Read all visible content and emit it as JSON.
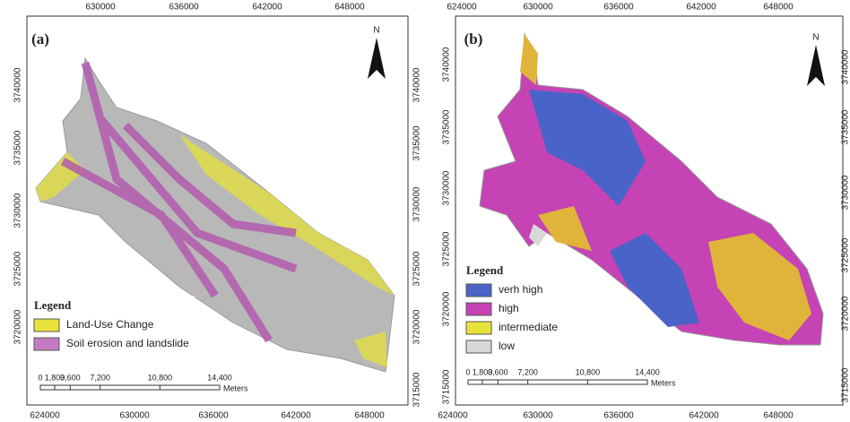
{
  "panels": [
    {
      "label": "(a)",
      "north": "N",
      "top_ticks": [
        630000,
        636000,
        642000,
        648000
      ],
      "bottom_ticks": [
        624000,
        630000,
        636000,
        642000,
        648000
      ],
      "left_ticks": [
        3740000,
        3735000,
        3730000,
        3725000,
        3720000
      ],
      "right_ticks": [
        3740000,
        3735000,
        3730000,
        3725000,
        3720000,
        3715000
      ],
      "legend": {
        "title": "Legend",
        "items": [
          {
            "label": "Land-Use Change",
            "color": "#e8e23a"
          },
          {
            "label": "Soil erosion and landslide",
            "color": "#c77ac4"
          }
        ]
      },
      "scale": {
        "labels": [
          "0",
          "1,800",
          "3,600",
          "7,200",
          "10,800",
          "14,400"
        ],
        "unit": "Meters"
      }
    },
    {
      "label": "(b)",
      "north": "N",
      "top_ticks": [
        624000,
        630000,
        636000,
        642000,
        648000
      ],
      "bottom_ticks": [
        624000,
        630000,
        636000,
        642000,
        648000
      ],
      "left_ticks": [
        3740000,
        3735000,
        3730000,
        3725000,
        3720000,
        3715000
      ],
      "right_ticks": [
        3740000,
        3735000,
        3730000,
        3725000,
        3720000,
        3715000
      ],
      "legend": {
        "title": "Legend",
        "items": [
          {
            "label": "verh high",
            "color": "#4a63c8"
          },
          {
            "label": "high",
            "color": "#c543b4"
          },
          {
            "label": "intermediate",
            "color": "#e8e23a"
          },
          {
            "label": "low",
            "color": "#d8d8d8"
          }
        ]
      },
      "scale": {
        "labels": [
          "0",
          "1,800",
          "3,600",
          "7,200",
          "10,800",
          "14,400"
        ],
        "unit": "Meters"
      }
    }
  ]
}
